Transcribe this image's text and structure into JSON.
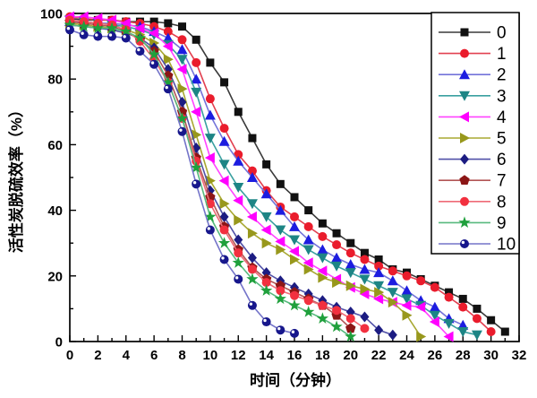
{
  "figure": {
    "background": "#ffffff",
    "frame_color": "#000000",
    "legend_border_color": "#000000"
  },
  "chart_data": {
    "type": "line",
    "title": "",
    "xlabel": "时间（分钟）",
    "ylabel": "活性炭脱硫效率（%）",
    "xlim": [
      0,
      32
    ],
    "ylim": [
      0,
      100
    ],
    "xticks": [
      0,
      2,
      4,
      6,
      8,
      10,
      12,
      14,
      16,
      18,
      20,
      22,
      24,
      26,
      28,
      30,
      32
    ],
    "yticks": [
      0,
      20,
      40,
      60,
      80,
      100
    ],
    "x_minor_step": 1,
    "y_minor_step": 10,
    "grid": false,
    "legend_position": "top-right",
    "x_start": 0,
    "x_interval_minutes": 1,
    "series": [
      {
        "name": "0",
        "marker": "square",
        "color": "#111111",
        "line_color": "#3a3a3a",
        "values": [
          98.5,
          98,
          98,
          98,
          97.5,
          97.5,
          97.5,
          97,
          96,
          92,
          85,
          79,
          70,
          62,
          54,
          48,
          44,
          40,
          36,
          33,
          30,
          27,
          25,
          22,
          21,
          19,
          17,
          15,
          13,
          10,
          6.5,
          3
        ]
      },
      {
        "name": "1",
        "marker": "circle",
        "color": "#ea1c2c",
        "line_color": "#e24050",
        "values": [
          99,
          98.5,
          98,
          98,
          97.5,
          97,
          96,
          94.5,
          92,
          85,
          74,
          65,
          57,
          52,
          46,
          41,
          38,
          35,
          32,
          29.5,
          27,
          25,
          23,
          21.5,
          20,
          18.5,
          16.5,
          13.5,
          10.5,
          7,
          3
        ]
      },
      {
        "name": "2",
        "marker": "triangle-up",
        "color": "#1c1ce0",
        "line_color": "#7373d9",
        "values": [
          97.5,
          97.5,
          97,
          97,
          96.5,
          96,
          94.5,
          92.5,
          89,
          80,
          69,
          61,
          55,
          50,
          45,
          40,
          35,
          31,
          28,
          25.5,
          23.5,
          22,
          21,
          18.5,
          15.5,
          12.5,
          10.5,
          7,
          5
        ]
      },
      {
        "name": "3",
        "marker": "triangle-down",
        "color": "#1d8585",
        "line_color": "#3aa0a0",
        "values": [
          98,
          97.5,
          97,
          96.5,
          96,
          95,
          93.5,
          90.5,
          86,
          76,
          62,
          54,
          47,
          42,
          38,
          34,
          31,
          28,
          25.5,
          23,
          21,
          19,
          17,
          15,
          13,
          11,
          8,
          5.5,
          3,
          2
        ]
      },
      {
        "name": "4",
        "marker": "triangle-left",
        "color": "#ff00ff",
        "line_color": "#ff44ff",
        "values": [
          99,
          99,
          98.5,
          98,
          97,
          95.5,
          94,
          90,
          83,
          70,
          56,
          49,
          43,
          38,
          34,
          30.5,
          27.5,
          24,
          21.5,
          19,
          16.5,
          14.5,
          13,
          12,
          11,
          10.5,
          6,
          1.5
        ]
      },
      {
        "name": "5",
        "marker": "triangle-right",
        "color": "#98981c",
        "line_color": "#a8a832",
        "values": [
          97,
          96.5,
          96,
          95.5,
          95,
          93.5,
          91,
          86,
          77,
          63,
          49,
          42,
          37,
          33,
          30,
          28,
          25,
          22,
          19.5,
          18,
          17,
          16,
          15,
          12,
          8,
          1.5
        ]
      },
      {
        "name": "6",
        "marker": "diamond",
        "color": "#1c1c82",
        "line_color": "#5151a8",
        "values": [
          96.5,
          96,
          95.5,
          95,
          94,
          92.5,
          89.5,
          83,
          73,
          59,
          46,
          38,
          31,
          25.5,
          21,
          18.5,
          16.5,
          14.5,
          12.5,
          10.5,
          9,
          7.5,
          3.5,
          2
        ]
      },
      {
        "name": "7",
        "marker": "pentagon",
        "color": "#8c1616",
        "line_color": "#b25555",
        "values": [
          97.5,
          97,
          96.5,
          96,
          94.5,
          92,
          88.5,
          81,
          70,
          56,
          44,
          35,
          28,
          22.5,
          19,
          17,
          15,
          13,
          11,
          8,
          4
        ]
      },
      {
        "name": "8",
        "marker": "circle",
        "color": "#f2303f",
        "line_color": "#ef6b77",
        "values": [
          98,
          97.5,
          97,
          96.5,
          95,
          91.5,
          86,
          79,
          68,
          55,
          42,
          34,
          27,
          22,
          18,
          15.5,
          14,
          12.5,
          11,
          9.5,
          7,
          4
        ]
      },
      {
        "name": "9",
        "marker": "star",
        "color": "#1fa03c",
        "line_color": "#57b97e",
        "values": [
          96.5,
          96,
          95.5,
          95.5,
          94.5,
          92.5,
          87.5,
          79,
          68,
          53,
          38,
          30,
          24,
          19,
          15.5,
          13,
          11,
          9,
          7,
          4.5,
          1.5
        ]
      },
      {
        "name": "10",
        "marker": "circle-dot",
        "color": "#17178c",
        "line_color": "#7474c9",
        "values": [
          95,
          93.5,
          93,
          93,
          92.5,
          88.5,
          84.5,
          77,
          64,
          48,
          34,
          25,
          19,
          11,
          6,
          3.5,
          2.5
        ]
      }
    ],
    "legend_labels": [
      "0",
      "1",
      "2",
      "3",
      "4",
      "5",
      "6",
      "7",
      "8",
      "9",
      "10"
    ]
  }
}
